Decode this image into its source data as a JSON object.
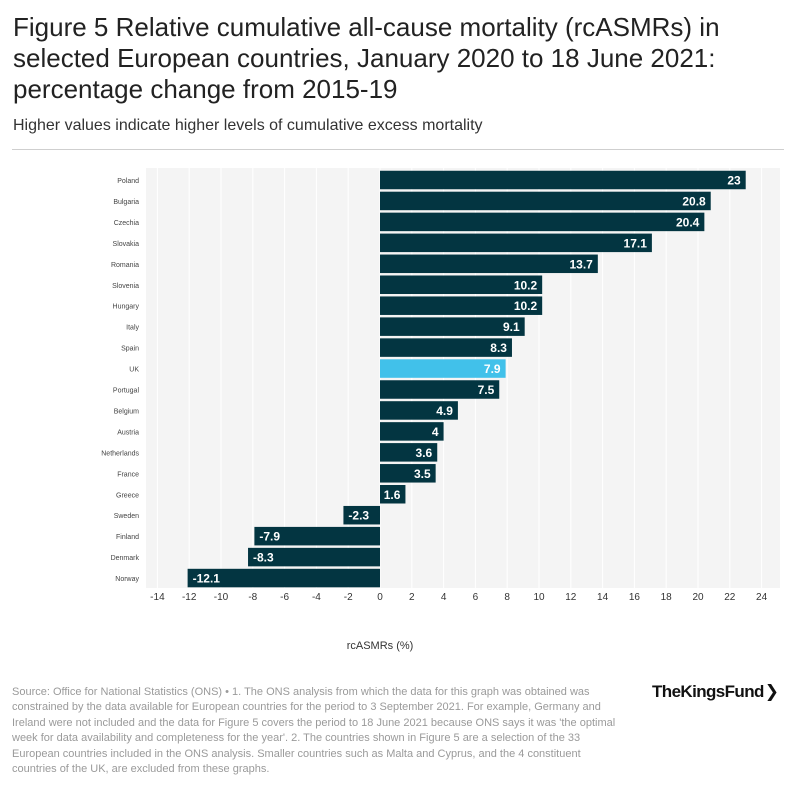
{
  "title": "Figure 5 Relative cumulative all-cause mortality (rcASMRs) in selected European countries, January 2020 to 18 June 2021: percentage change from 2015-19",
  "subtitle": "Higher values indicate higher levels of cumulative excess mortality",
  "source": "Source: Office for National Statistics (ONS) • 1. The ONS analysis from which the data for this graph was obtained was constrained by the data available for European countries for the period to 3 September 2021. For example, Germany and Ireland were not included and the data for Figure 5 covers the period to 18 June 2021 because ONS says it was 'the optimal week for data availability and completeness for the year'. 2. The countries shown in Figure 5 are a selection of the 33 European countries included in the ONS analysis. Smaller countries such as Malta and Cyprus, and the 4 constituent countries of the UK, are excluded from these graphs.",
  "logo": {
    "text": "TheKingsFund",
    "chevron": "❯"
  },
  "colors": {
    "bar": "#033541",
    "highlight": "#41c1ea",
    "plot_bg": "#f4f4f4"
  },
  "chart_data": {
    "type": "bar",
    "orientation": "horizontal",
    "title": "Figure 5 Relative cumulative all-cause mortality (rcASMRs) in selected European countries, January 2020 to 18 June 2021: percentage change from 2015-19",
    "xlabel": "rcASMRs (%)",
    "ylabel": "",
    "xlim": [
      -15,
      25
    ],
    "xticks": [
      -14,
      -12,
      -10,
      -8,
      -6,
      -4,
      -2,
      0,
      2,
      4,
      6,
      8,
      10,
      12,
      14,
      16,
      18,
      20,
      22,
      24
    ],
    "grid": "vertical",
    "highlight": "UK",
    "categories": [
      "Poland",
      "Bulgaria",
      "Czechia",
      "Slovakia",
      "Romania",
      "Slovenia",
      "Hungary",
      "Italy",
      "Spain",
      "UK",
      "Portugal",
      "Belgium",
      "Austria",
      "Netherlands",
      "France",
      "Greece",
      "Sweden",
      "Finland",
      "Denmark",
      "Norway"
    ],
    "values": [
      23,
      20.8,
      20.4,
      17.1,
      13.7,
      10.2,
      10.2,
      9.1,
      8.3,
      7.9,
      7.5,
      4.9,
      4,
      3.6,
      3.5,
      1.6,
      -2.3,
      -7.9,
      -8.3,
      -12.1
    ]
  }
}
